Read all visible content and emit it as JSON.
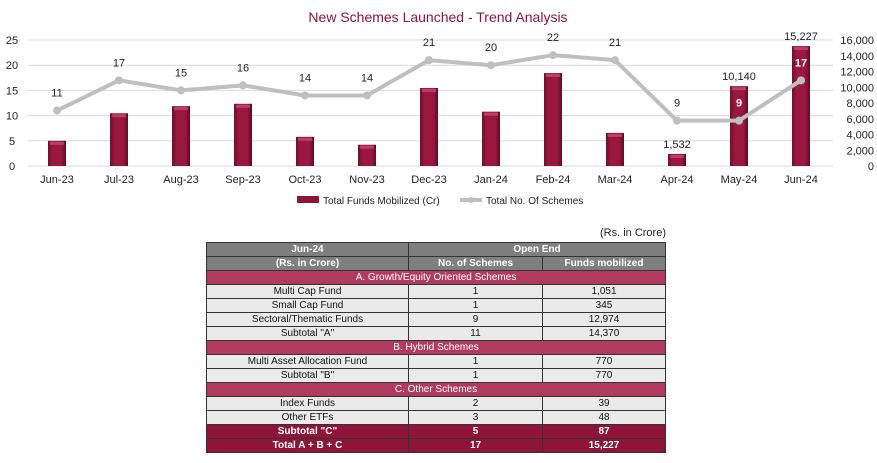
{
  "chart_data": {
    "type": "bar+line",
    "title": "New Schemes Launched - Trend Analysis",
    "categories": [
      "Jun-23",
      "Jul-23",
      "Aug-23",
      "Sep-23",
      "Oct-23",
      "Nov-23",
      "Dec-23",
      "Jan-24",
      "Feb-24",
      "Mar-24",
      "Apr-24",
      "May-24",
      "Jun-24"
    ],
    "series": [
      {
        "name": "Total Funds Mobilized (Cr)",
        "type": "bar",
        "axis": "right",
        "color": "#8e1438",
        "values": [
          3200,
          6700,
          7600,
          7900,
          3700,
          2700,
          9900,
          6900,
          11800,
          4200,
          1532,
          10140,
          15227
        ],
        "labels": [
          "",
          "",
          "",
          "",
          "",
          "",
          "",
          "",
          "",
          "",
          "1,532",
          "10,140",
          "15,227"
        ]
      },
      {
        "name": "Total No. Of Schemes",
        "type": "line",
        "axis": "left",
        "color": "#bfbfbf",
        "values": [
          11,
          17,
          15,
          16,
          14,
          14,
          21,
          20,
          22,
          21,
          9,
          9,
          17
        ]
      }
    ],
    "left_axis": {
      "range": [
        0,
        25
      ],
      "ticks": [
        "0",
        "5",
        "10",
        "15",
        "20",
        "25"
      ]
    },
    "right_axis": {
      "range": [
        0,
        16000
      ],
      "ticks": [
        "0",
        "2,000",
        "4,000",
        "6,000",
        "8,000",
        "10,000",
        "12,000",
        "14,000",
        "16,000"
      ]
    },
    "grid": true,
    "legend": "bottom"
  },
  "table": {
    "unit_note": "(Rs. in Crore)",
    "header1": [
      "Jun-24",
      "Open End"
    ],
    "header2": [
      "(Rs. in Crore)",
      "No. of Schemes",
      "Funds mobilized"
    ],
    "sections": [
      {
        "title": "A. Growth/Equity Oriented Schemes",
        "rows": [
          [
            "Multi Cap Fund",
            "1",
            "1,051"
          ],
          [
            "Small Cap Fund",
            "1",
            "345"
          ],
          [
            "Sectoral/Thematic Funds",
            "9",
            "12,974"
          ],
          [
            "Subtotal \"A\"",
            "11",
            "14,370"
          ]
        ]
      },
      {
        "title": "B. Hybrid Schemes",
        "rows": [
          [
            "Multi Asset Allocation Fund",
            "1",
            "770"
          ],
          [
            "Subtotal \"B\"",
            "1",
            "770"
          ]
        ]
      },
      {
        "title": "C. Other Schemes",
        "rows": [
          [
            "Index Funds",
            "2",
            "39"
          ],
          [
            "Other ETFs",
            "3",
            "48"
          ]
        ]
      }
    ],
    "totals": [
      [
        "Subtotal \"C\"",
        "5",
        "87"
      ],
      [
        "Total A + B + C",
        "17",
        "15,227"
      ]
    ]
  }
}
